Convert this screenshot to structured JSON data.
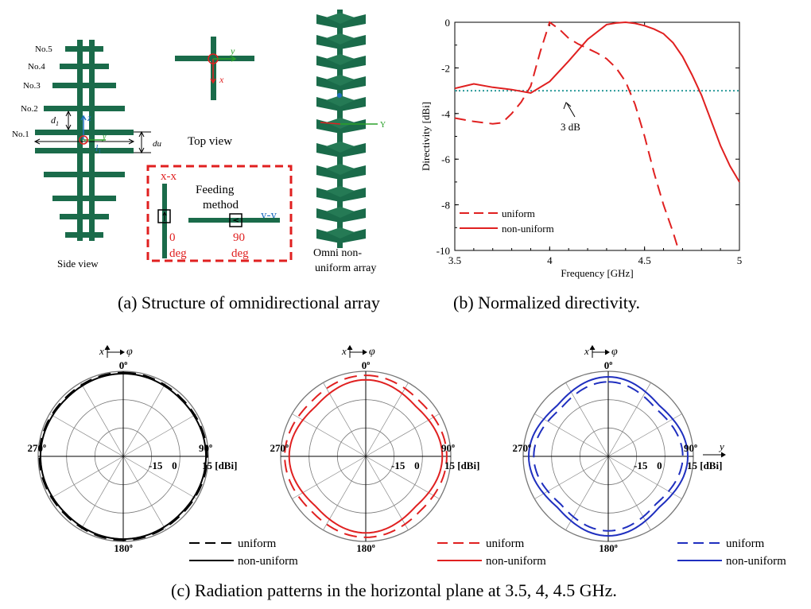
{
  "figure": {
    "caption_a": "(a) Structure of omnidirectional array",
    "caption_b": "(b) Normalized directivity.",
    "caption_c": "(c) Radiation patterns in the horizontal plane at 3.5, 4, 4.5 GHz."
  },
  "structure": {
    "element_labels": [
      "No.5",
      "No.4",
      "No.3",
      "No.2",
      "No.1"
    ],
    "dim_d1": "d",
    "dim_d1_sub": "1",
    "dim_l1": "l",
    "dim_l1_sub": "1",
    "dim_du": "du",
    "axis_z": "z",
    "axis_y": "y",
    "axis_x": "x",
    "side_view_label": "Side view",
    "top_view_label": "Top view",
    "feeding_title": [
      "Feeding",
      "method"
    ],
    "feeding_xx": "x-x",
    "feeding_yy": "y-y",
    "feeding_deg0": [
      "0",
      "deg"
    ],
    "feeding_deg90": [
      "90",
      "deg"
    ],
    "omni_label": [
      "Omni non-",
      "uniform array"
    ],
    "axis_3d_y": "Y",
    "colors": {
      "antenna": "#1a6b4a",
      "feed_box": "#e02020",
      "axis_blue": "#1f6fbf",
      "axis_red": "#e02020",
      "axis_green": "#2aa02a"
    }
  },
  "chart_data": [
    {
      "type": "line",
      "xlabel": "Frequency [GHz]",
      "ylabel": "Directivity [dBi]",
      "xlim": [
        3.5,
        5.0
      ],
      "ylim": [
        -10,
        0
      ],
      "xticks": [
        "3.5",
        "4",
        "4.5",
        "5"
      ],
      "yticks": [
        "0",
        "-2",
        "-4",
        "-6",
        "-8",
        "-10"
      ],
      "legend_position": "bottom-left",
      "annotation": "3 dB",
      "reference_line": -3,
      "series": [
        {
          "name": "uniform",
          "style": "dashed",
          "color": "#e02020",
          "x": [
            3.5,
            3.6,
            3.7,
            3.75,
            3.8,
            3.85,
            3.9,
            3.95,
            4.0,
            4.05,
            4.1,
            4.15,
            4.2,
            4.25,
            4.3,
            4.35,
            4.4,
            4.45,
            4.5,
            4.55,
            4.6,
            4.65,
            4.68
          ],
          "y": [
            -4.2,
            -4.35,
            -4.45,
            -4.4,
            -4.0,
            -3.5,
            -2.8,
            -1.3,
            0.0,
            -0.3,
            -0.7,
            -0.95,
            -1.15,
            -1.35,
            -1.6,
            -2.0,
            -2.6,
            -3.6,
            -5.0,
            -6.6,
            -8.0,
            -9.2,
            -10.0
          ]
        },
        {
          "name": "non-uniform",
          "style": "solid",
          "color": "#e02020",
          "x": [
            3.5,
            3.55,
            3.6,
            3.7,
            3.8,
            3.9,
            4.0,
            4.1,
            4.2,
            4.3,
            4.35,
            4.4,
            4.45,
            4.5,
            4.55,
            4.6,
            4.65,
            4.7,
            4.75,
            4.8,
            4.85,
            4.9,
            4.95,
            5.0
          ],
          "y": [
            -2.9,
            -2.8,
            -2.7,
            -2.85,
            -2.95,
            -3.1,
            -2.6,
            -1.7,
            -0.75,
            -0.1,
            -0.03,
            0.0,
            -0.05,
            -0.15,
            -0.3,
            -0.5,
            -0.9,
            -1.5,
            -2.3,
            -3.2,
            -4.3,
            -5.4,
            -6.3,
            -7.0
          ]
        }
      ]
    },
    {
      "type": "polar",
      "angle_labels": [
        "0°",
        "90°",
        "180°",
        "270°"
      ],
      "radial_labels": [
        "-15",
        "0",
        "15 [dBi]"
      ],
      "rlim": [
        -30,
        15
      ],
      "axis_labels": {
        "x": "x",
        "phi": "φ"
      },
      "color": "#000000",
      "series": [
        {
          "name": "uniform",
          "style": "dashed",
          "level_db": 13.8,
          "squareness": 0.02
        },
        {
          "name": "non-uniform",
          "style": "solid",
          "level_db": 13.2,
          "squareness": 0.02
        }
      ]
    },
    {
      "type": "polar",
      "angle_labels": [
        "0°",
        "90°",
        "180°",
        "270°"
      ],
      "radial_labels": [
        "-15",
        "0",
        "15 [dBi]"
      ],
      "rlim": [
        -30,
        15
      ],
      "axis_labels": {
        "x": "x",
        "phi": "φ"
      },
      "color": "#e02020",
      "series": [
        {
          "name": "uniform",
          "style": "dashed",
          "level_db": 11.5,
          "squareness": 0.05
        },
        {
          "name": "non-uniform",
          "style": "solid",
          "level_db": 8.5,
          "squareness": 0.08
        }
      ]
    },
    {
      "type": "polar",
      "angle_labels": [
        "0°",
        "90°",
        "180°",
        "270°"
      ],
      "radial_labels": [
        "-15",
        "0",
        "15 [dBi]"
      ],
      "rlim": [
        -30,
        15
      ],
      "axis_labels": {
        "x": "x",
        "phi": "φ",
        "y": "y"
      },
      "color": "#1f2fbf",
      "series": [
        {
          "name": "uniform",
          "style": "dashed",
          "level_db": 7.0,
          "squareness": 0.1
        },
        {
          "name": "non-uniform",
          "style": "solid",
          "level_db": 9.5,
          "squareness": 0.1
        }
      ]
    }
  ]
}
